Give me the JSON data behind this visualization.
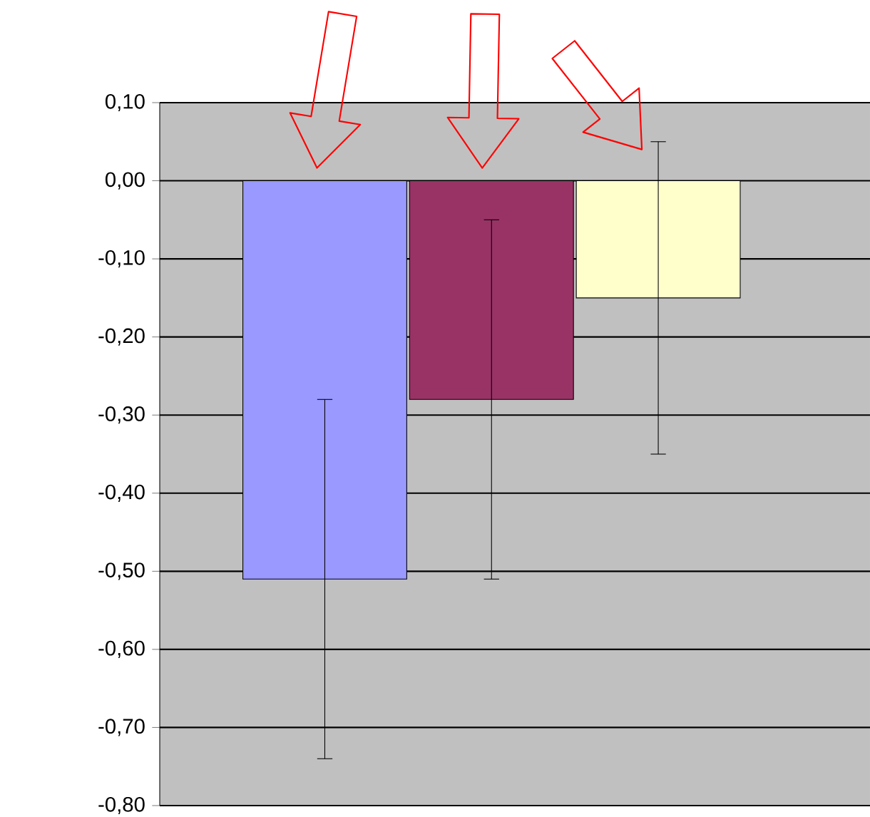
{
  "chart_data": {
    "type": "bar",
    "categories": [
      null,
      null,
      null
    ],
    "values": [
      -0.51,
      -0.28,
      -0.15
    ],
    "colors": [
      "#9999ff",
      "#993366",
      "#ffffcc"
    ],
    "errors": [
      0.23,
      0.23,
      0.2
    ],
    "ylim": [
      -0.8,
      0.1
    ],
    "yticks": [
      {
        "value": 0.1,
        "label": "0,10"
      },
      {
        "value": 0.0,
        "label": "0,00"
      },
      {
        "value": -0.1,
        "label": "-0,10"
      },
      {
        "value": -0.2,
        "label": "-0,20"
      },
      {
        "value": -0.3,
        "label": "-0,30"
      },
      {
        "value": -0.4,
        "label": "-0,40"
      },
      {
        "value": -0.5,
        "label": "-0,50"
      },
      {
        "value": -0.6,
        "label": "-0,60"
      },
      {
        "value": -0.7,
        "label": "-0,70"
      },
      {
        "value": -0.8,
        "label": "-0,80"
      }
    ],
    "grid": "y",
    "tick_labels": "y"
  }
}
